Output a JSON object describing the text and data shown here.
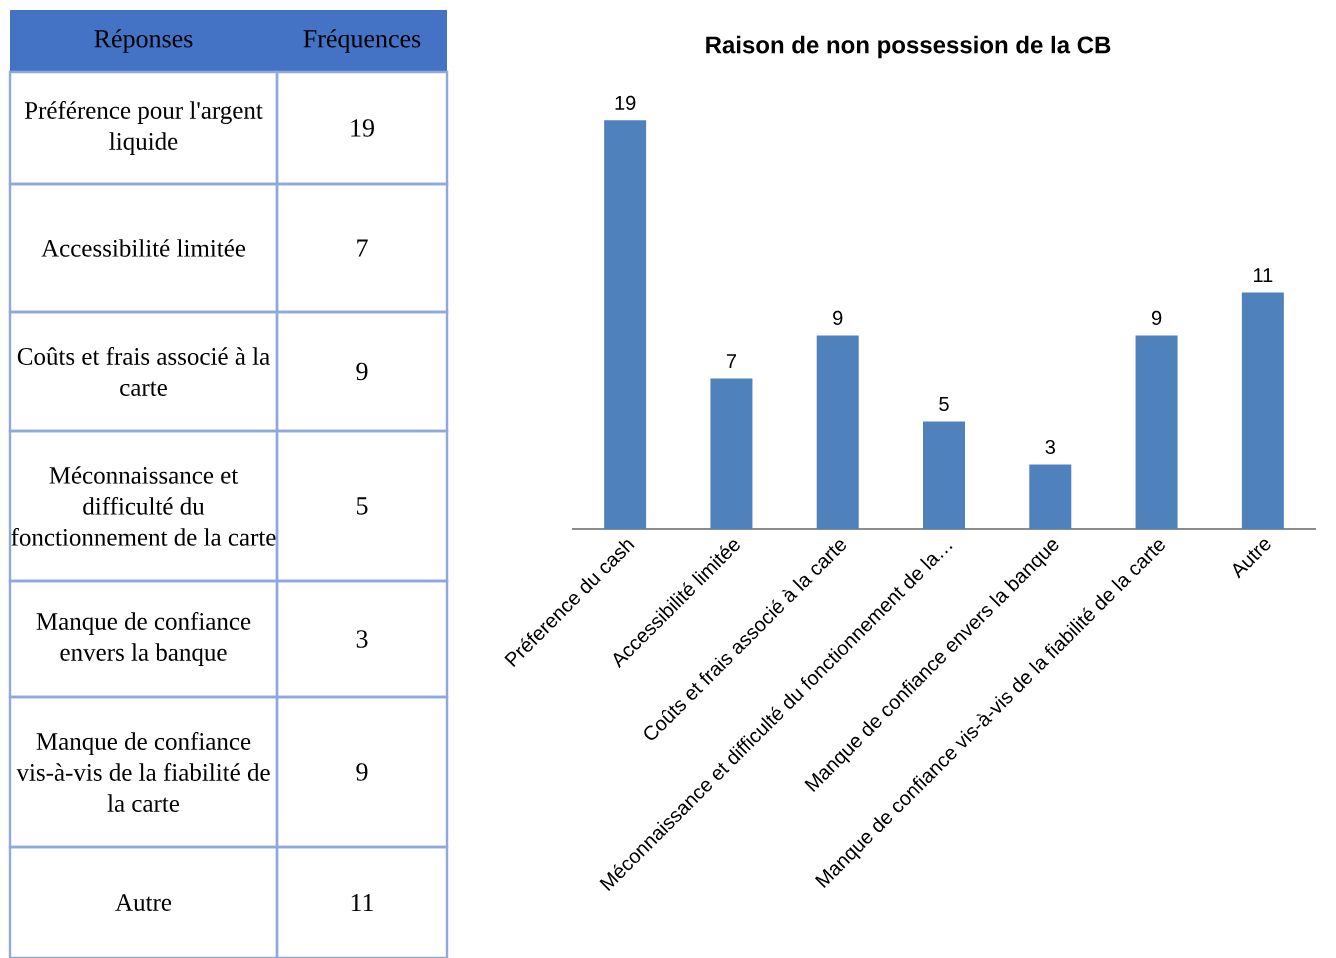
{
  "chart_data": [
    {
      "type": "other",
      "xlabel": "Réponses",
      "ylabel": "Fréquences",
      "categories": [
        "Préférence pour l'argent liquide",
        "Accessibilité limitée",
        "Coûts et frais associé à la carte",
        "Méconnaissance et difficulté du fonctionnement de la carte",
        "Manque de confiance envers la banque",
        "Manque de confiance vis-à-vis de la fiabilité de la carte",
        "Autre"
      ],
      "values": [
        19,
        7,
        9,
        5,
        3,
        9,
        11
      ],
      "data_labels": true
    },
    {
      "type": "bar",
      "title": "Raison de non possession de la CB",
      "categories": [
        "Préference du cash",
        "Accessibilité limitée",
        "Coûts et frais associé à la carte",
        "Méconnaissance et difficulté du fonctionnement de la…",
        "Manque de confiance envers la banque",
        "Manque de confiance vis-à-vis de la fiabilité de la carte",
        "Autre"
      ],
      "values": [
        19,
        7,
        9,
        5,
        3,
        9,
        11
      ],
      "color": "#4f81bd",
      "data_labels": true
    }
  ]
}
